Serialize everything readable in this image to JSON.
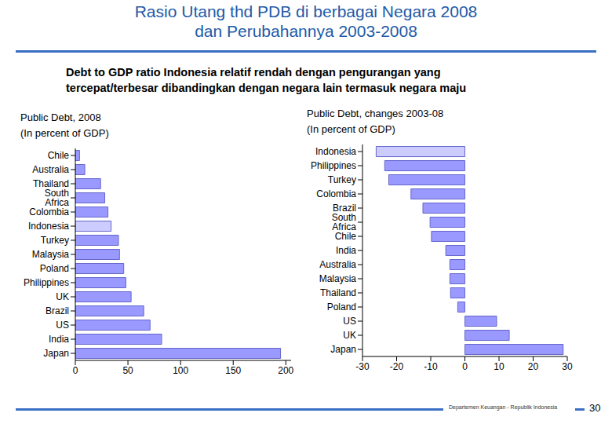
{
  "header": {
    "title": [
      "Rasio Utang thd PDB di berbagai Negara 2008",
      "dan Perubahannya 2003-2008"
    ],
    "subtitle": [
      "Debt to GDP ratio Indonesia relatif rendah dengan pengurangan yang",
      "tercepat/terbesar dibandingkan dengan negara lain termasuk negara maju"
    ]
  },
  "footer": {
    "text": "Departemen Keuangan - Republik Indonesia",
    "page": "30"
  },
  "chart_data": [
    {
      "type": "bar",
      "orientation": "horizontal",
      "title": "Public Debt, 2008",
      "subtitle": "(In percent of GDP)",
      "categories": [
        "Chile",
        "Australia",
        "Thailand",
        "South Africa",
        "Colombia",
        "Indonesia",
        "Turkey",
        "Malaysia",
        "Poland",
        "Philippines",
        "UK",
        "Brazil",
        "US",
        "India",
        "Japan"
      ],
      "values": [
        4,
        9,
        24,
        28,
        31,
        34,
        41,
        42,
        46,
        48,
        53,
        65,
        71,
        82,
        195
      ],
      "colors": [
        "#9999ff",
        "#9999ff",
        "#9999ff",
        "#9999ff",
        "#9999ff",
        "#ccccff",
        "#9999ff",
        "#9999ff",
        "#9999ff",
        "#9999ff",
        "#9999ff",
        "#9999ff",
        "#9999ff",
        "#9999ff",
        "#9999ff"
      ],
      "xlim": [
        0,
        205
      ],
      "xticks": [
        0,
        50,
        100,
        150,
        200
      ],
      "grid": false
    },
    {
      "type": "bar",
      "orientation": "horizontal",
      "title": "Public Debt, changes 2003-08",
      "subtitle": "(In percent of GDP)",
      "categories": [
        "Indonesia",
        "Philippines",
        "Turkey",
        "Colombia",
        "Brazil",
        "South Africa",
        "Chile",
        "India",
        "Australia",
        "Malaysia",
        "Thailand",
        "Poland",
        "US",
        "UK",
        "Japan"
      ],
      "values": [
        -26,
        -23.5,
        -22.3,
        -15.8,
        -12.3,
        -10.2,
        -9.8,
        -5.6,
        -4.4,
        -4.4,
        -4.2,
        -2.1,
        9.3,
        13,
        28.8
      ],
      "colors": [
        "#ccccff",
        "#9999ff",
        "#9999ff",
        "#9999ff",
        "#9999ff",
        "#9999ff",
        "#9999ff",
        "#9999ff",
        "#9999ff",
        "#9999ff",
        "#9999ff",
        "#9999ff",
        "#9999ff",
        "#9999ff",
        "#9999ff"
      ],
      "xlim": [
        -30,
        30
      ],
      "xticks": [
        -30,
        -20,
        -10,
        0,
        10,
        20,
        30
      ],
      "grid": false
    }
  ]
}
